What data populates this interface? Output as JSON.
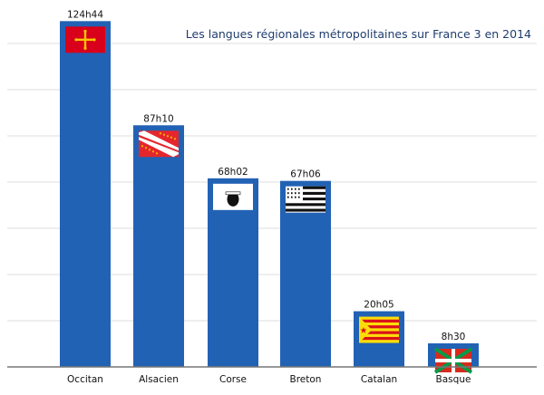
{
  "chart_data": {
    "type": "bar",
    "title": "Les langues régionales métropolitaines sur France 3 en 2014",
    "xlabel": "",
    "ylabel": "",
    "categories": [
      "Occitan",
      "Alsacien",
      "Corse",
      "Breton",
      "Catalan",
      "Basque"
    ],
    "values_hours": [
      124.733,
      87.167,
      68.033,
      67.1,
      20.083,
      8.5
    ],
    "value_labels": [
      "124h44",
      "87h10",
      "68h02",
      "67h06",
      "20h05",
      "8h30"
    ],
    "flags": [
      "occitan-flag",
      "alsace-flag",
      "corsica-flag",
      "brittany-flag",
      "catalonia-flag",
      "basque-flag"
    ],
    "ylim": [
      0,
      125
    ],
    "grid": true,
    "bar_color": "#2262b4"
  }
}
